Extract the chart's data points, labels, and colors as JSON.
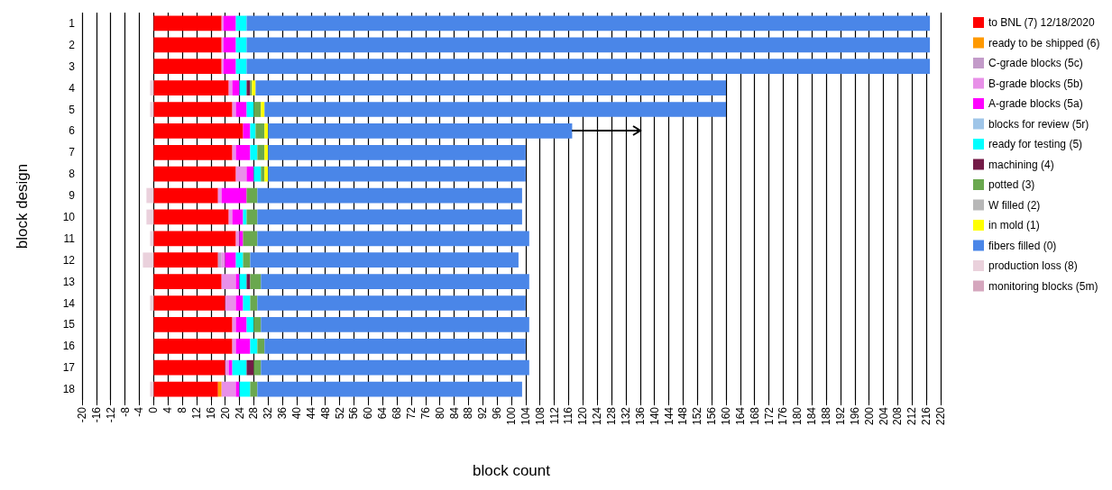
{
  "chart_data": {
    "type": "bar",
    "orientation": "horizontal",
    "stacked": true,
    "xlabel": "block count",
    "ylabel": "block design",
    "categories": [
      "1",
      "2",
      "3",
      "4",
      "5",
      "6",
      "7",
      "8",
      "9",
      "10",
      "11",
      "12",
      "13",
      "14",
      "15",
      "16",
      "17",
      "18"
    ],
    "series": [
      {
        "name": "to BNL (7) 12/18/2020",
        "color": "#ff0000",
        "values": [
          19,
          19,
          19,
          21,
          22,
          25,
          22,
          23,
          18,
          21,
          23,
          18,
          19,
          20,
          22,
          22,
          20,
          18
        ]
      },
      {
        "name": "ready to be shipped (6)",
        "color": "#ff9900",
        "values": [
          null,
          null,
          null,
          null,
          null,
          null,
          null,
          null,
          null,
          null,
          null,
          null,
          null,
          null,
          null,
          null,
          null,
          1
        ]
      },
      {
        "name": "C-grade blocks (5c)",
        "color": "#c39bc9",
        "values": [
          null,
          null,
          null,
          null,
          null,
          null,
          null,
          null,
          null,
          null,
          null,
          1,
          null,
          null,
          null,
          null,
          null,
          null
        ]
      },
      {
        "name": "B-grade blocks (5b)",
        "color": "#e890e8",
        "values": [
          0.5,
          0.5,
          0.5,
          1,
          1,
          null,
          1,
          3,
          1,
          1,
          1,
          1,
          4,
          3,
          1,
          1,
          1,
          4
        ]
      },
      {
        "name": "A-grade blocks (5a)",
        "color": "#ff00ff",
        "values": [
          3.5,
          3.5,
          3.5,
          2,
          3,
          2,
          4,
          2,
          7,
          3,
          1,
          3,
          1,
          2,
          3,
          4,
          1,
          1
        ]
      },
      {
        "name": "blocks for review (5r)",
        "color": "#9fc5e8",
        "values": [
          null,
          null,
          null,
          null,
          null,
          null,
          null,
          null,
          null,
          null,
          null,
          null,
          null,
          null,
          null,
          null,
          null,
          null
        ]
      },
      {
        "name": "ready for testing (5)",
        "color": "#00ffff",
        "values": [
          3,
          3,
          3,
          2,
          2,
          1.5,
          2,
          2,
          null,
          1,
          null,
          2,
          2,
          2,
          2,
          2,
          4,
          3
        ]
      },
      {
        "name": "machining (4)",
        "color": "#741b47",
        "values": [
          null,
          null,
          null,
          1,
          null,
          null,
          null,
          null,
          null,
          null,
          null,
          null,
          1,
          null,
          null,
          null,
          2,
          null
        ]
      },
      {
        "name": "potted (3)",
        "color": "#6aa84f",
        "values": [
          null,
          null,
          null,
          0.5,
          2,
          2.5,
          2,
          1,
          3,
          3,
          4,
          2,
          3,
          2,
          2,
          2,
          2,
          2
        ]
      },
      {
        "name": "W filled (2)",
        "color": "#b7b7b7",
        "values": [
          null,
          null,
          null,
          null,
          null,
          null,
          null,
          null,
          null,
          null,
          null,
          null,
          null,
          null,
          null,
          null,
          null,
          null
        ]
      },
      {
        "name": "in mold (1)",
        "color": "#ffff00",
        "values": [
          null,
          null,
          null,
          1,
          1,
          1,
          1,
          1,
          null,
          null,
          null,
          null,
          null,
          null,
          null,
          null,
          null,
          null
        ]
      },
      {
        "name": "fibers filled (0)",
        "color": "#4a86e8",
        "values": [
          191,
          191,
          191,
          131.5,
          129,
          85,
          72,
          72,
          74,
          74,
          76,
          75,
          75,
          75,
          75,
          73,
          75,
          74
        ]
      },
      {
        "name": "production loss (8)",
        "color": "#ead1dc",
        "values": [
          null,
          null,
          null,
          -1,
          -1,
          null,
          null,
          null,
          -2,
          -2,
          -1,
          -3,
          null,
          -1,
          null,
          null,
          null,
          -1
        ]
      },
      {
        "name": "monitoring blocks (5m)",
        "color": "#d5a6bd",
        "values": [
          null,
          null,
          null,
          null,
          null,
          null,
          null,
          null,
          null,
          null,
          null,
          null,
          null,
          null,
          null,
          null,
          null,
          null
        ]
      }
    ],
    "xlim": [
      -20,
      220
    ],
    "xticks": [
      -20,
      -16,
      -12,
      -8,
      -4,
      0,
      4,
      8,
      12,
      16,
      20,
      24,
      28,
      32,
      36,
      40,
      44,
      48,
      52,
      56,
      60,
      64,
      68,
      72,
      76,
      80,
      84,
      88,
      92,
      96,
      100,
      104,
      108,
      112,
      116,
      120,
      124,
      128,
      132,
      136,
      140,
      144,
      148,
      152,
      156,
      160,
      164,
      168,
      172,
      176,
      180,
      184,
      188,
      192,
      196,
      200,
      204,
      208,
      212,
      216,
      220
    ],
    "grid": "x",
    "legend": "right"
  }
}
